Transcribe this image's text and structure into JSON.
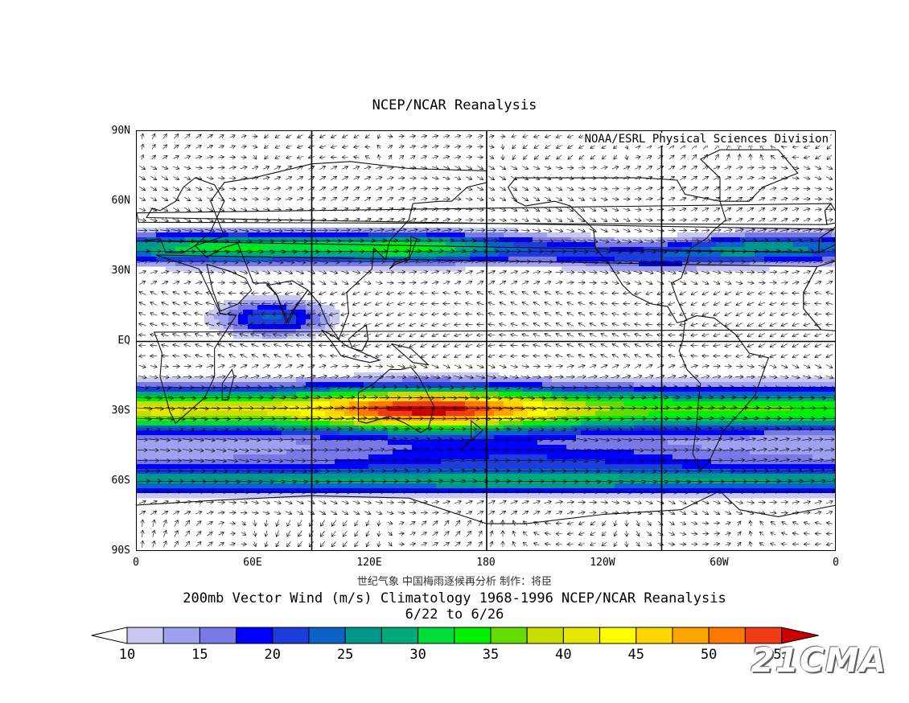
{
  "map": {
    "title": "NCEP/NCAR Reanalysis",
    "credit": "NOAA/ESRL Physical Sciences Division",
    "lat_labels": [
      "90N",
      "60N",
      "30N",
      "EQ",
      "30S",
      "60S",
      "90S"
    ],
    "lon_labels": [
      "0",
      "60E",
      "120E",
      "180",
      "120W",
      "60W",
      "0"
    ],
    "chinese_credit": "世纪气象   中国梅雨逐候再分析   制作：将臣",
    "caption": "200mb Vector Wind (m/s) Climatology 1968-1996 NCEP/NCAR Reanalysis",
    "date_range": "6/22  to 6/26",
    "watermark": "21CMA",
    "extent": {
      "lon": [
        0,
        360
      ],
      "lat": [
        -90,
        90
      ]
    },
    "grid_lon_lines": [
      90,
      180,
      270
    ],
    "grid_lat_lines": [
      0
    ],
    "units": "m/s"
  },
  "colorbar": {
    "labels": [
      "10",
      "15",
      "20",
      "25",
      "30",
      "35",
      "40",
      "45",
      "50",
      "55"
    ],
    "bins": [
      {
        "color": "#c8c8f0"
      },
      {
        "color": "#a0a0f0"
      },
      {
        "color": "#7878e6"
      },
      {
        "color": "#0000ff"
      },
      {
        "color": "#1e3cdc"
      },
      {
        "color": "#0a64c8"
      },
      {
        "color": "#00968c"
      },
      {
        "color": "#00aa78"
      },
      {
        "color": "#00dc3c"
      },
      {
        "color": "#00f000"
      },
      {
        "color": "#64dc00"
      },
      {
        "color": "#c8dc00"
      },
      {
        "color": "#e6e600"
      },
      {
        "color": "#ffff00"
      },
      {
        "color": "#ffd700"
      },
      {
        "color": "#ffa500"
      },
      {
        "color": "#ff7800"
      },
      {
        "color": "#f03c14"
      }
    ],
    "under_color": "#ffffff",
    "over_color": "#c80000"
  },
  "jets": [
    {
      "name": "subtropical-jet-south",
      "lat": -29,
      "lon": [
        0,
        360
      ],
      "color_band": "green-yellow-red"
    },
    {
      "name": "polar-jet-south",
      "lat": -60,
      "lon": [
        0,
        360
      ],
      "color_band": "blue"
    },
    {
      "name": "subtropical-jet-north",
      "lat": 40,
      "lon": [
        0,
        360
      ],
      "color_band": "green"
    },
    {
      "name": "easterly-jet-indian",
      "lat": 12,
      "lon": [
        45,
        110
      ],
      "color_band": "blue"
    }
  ]
}
